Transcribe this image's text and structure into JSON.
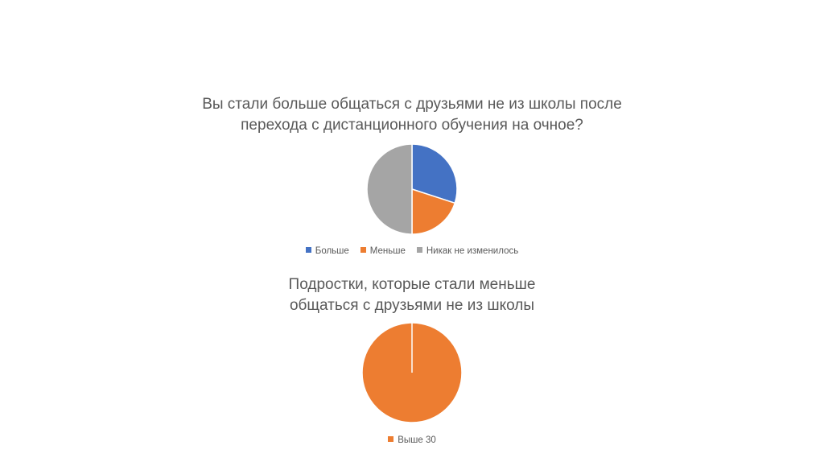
{
  "charts": [
    {
      "title_line1": "Вы стали больше общаться с друзьями не из школы после",
      "title_line2": "перехода с дистанционного обучения на очное?"
    },
    {
      "title_line1": "Подростки, которые стали меньше",
      "title_line2": "общаться с друзьями не из школы"
    }
  ],
  "chart_data": [
    {
      "type": "pie",
      "title": "Вы стали больше общаться с друзьями не из школы после перехода с дистанционного обучения на очное?",
      "categories": [
        "Больше",
        "Меньше",
        "Никак не изменилось"
      ],
      "values": [
        30,
        20,
        50
      ],
      "colors": [
        "#4472C4",
        "#ED7D31",
        "#A5A5A5"
      ],
      "legend": "bottom"
    },
    {
      "type": "pie",
      "title": "Подростки, которые стали меньше общаться с друзьями не из школы",
      "categories": [
        "Выше 30"
      ],
      "values": [
        100
      ],
      "colors": [
        "#ED7D31"
      ],
      "legend": "bottom"
    }
  ]
}
